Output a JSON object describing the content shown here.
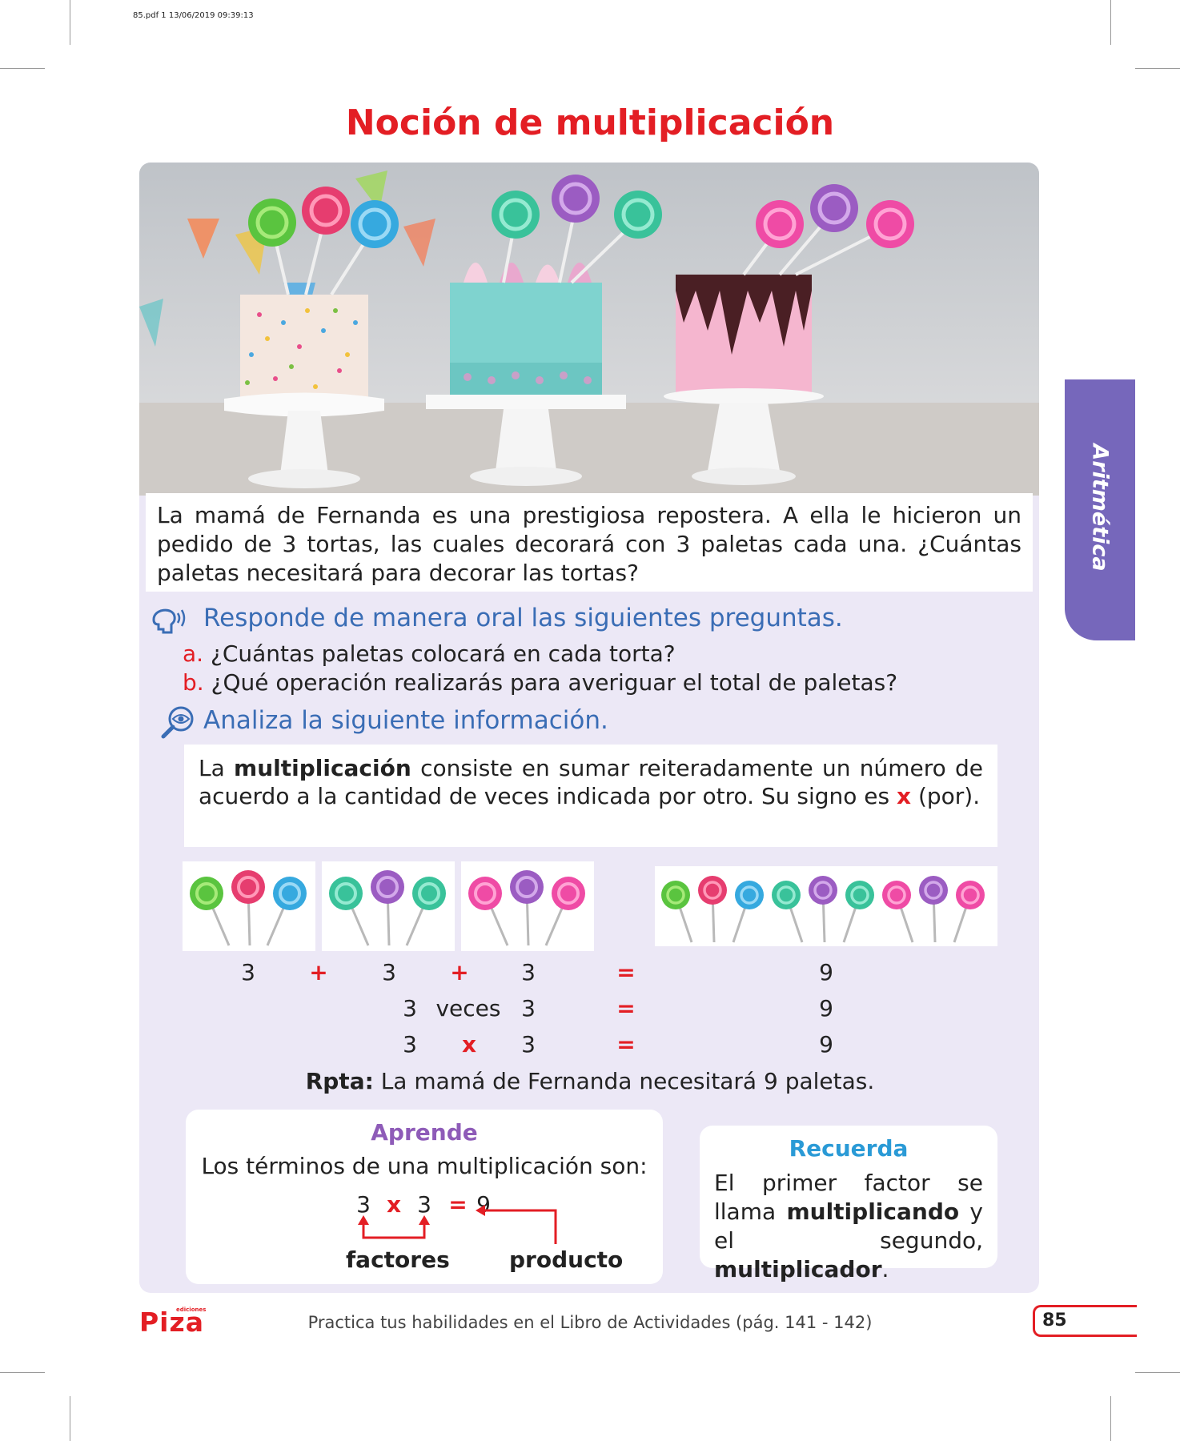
{
  "print_info": "85.pdf  1  13/06/2019  09:39:13",
  "title": "Noción de multiplicación",
  "side_tab": "Aritmética",
  "problem": "La mamá de Fernanda es una prestigiosa repostera. A ella le hicieron un pedido de 3 tortas, las cuales decorará con 3 paletas cada una. ¿Cuántas paletas necesitará para decorar las tortas?",
  "oral": {
    "heading": "Responde de manera oral las siguientes preguntas.",
    "questions": [
      {
        "letter": "a.",
        "text": "¿Cuántas paletas colocará en cada torta?"
      },
      {
        "letter": "b.",
        "text": "¿Qué operación realizarás para averiguar el total de paletas?"
      }
    ]
  },
  "analyze": {
    "heading": "Analiza la siguiente información.",
    "p1": "La ",
    "bold": "multiplicación",
    "p2": " consiste en sumar reiteradamente un número de acuerdo a la cantidad de veces indicada por otro. Su signo es ",
    "sign": "x",
    "p3": " (por)."
  },
  "equations": {
    "row1": [
      "3",
      "+",
      "3",
      "+",
      "3",
      "=",
      "9"
    ],
    "row2": [
      "3",
      "veces",
      "3",
      "=",
      "9"
    ],
    "row3": [
      "3",
      "x",
      "3",
      "=",
      "9"
    ]
  },
  "rpta": {
    "label": "Rpta:",
    "text": " La mamá de Fernanda necesitará 9 paletas."
  },
  "aprende": {
    "title": "Aprende",
    "subtitle": "Los términos de una multiplicación son:",
    "eq": [
      "3",
      "x",
      "3",
      "=",
      "9"
    ],
    "factores": "factores",
    "producto": "producto"
  },
  "recuerda": {
    "title": "Recuerda",
    "t1": "El primer factor se llama ",
    "b1": "multiplicando",
    "t2": " y el segundo, ",
    "b2": "multiplicador",
    "t3": "."
  },
  "footer": "Practica tus habilidades en el Libro de Actividades (pág. 141 - 142)",
  "page_number": "85",
  "logo": {
    "brand": "Piza",
    "small": "ediciones"
  },
  "colors": {
    "title_red": "#e31e24",
    "panel": "#ece8f6",
    "blue_heading": "#3a6db5",
    "tab_purple": "#7667bb",
    "aprende_purple": "#8e5bb8",
    "recuerda_blue": "#2a9ad6"
  }
}
